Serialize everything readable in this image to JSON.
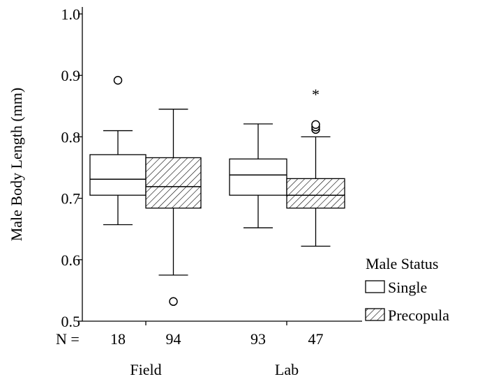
{
  "chart_data": {
    "type": "boxplot",
    "ylabel": "Male Body Length (mm)",
    "ylim": [
      0.5,
      1.0
    ],
    "yticks": [
      0.5,
      0.6,
      0.7,
      0.8,
      0.9,
      1.0
    ],
    "ytick_labels": [
      "0.5",
      "0.6",
      "0.7",
      "0.8",
      "0.9",
      "1.0"
    ],
    "groups": [
      "Field",
      "Lab"
    ],
    "n_prefix": "N =",
    "legend": {
      "title": "Male Status",
      "entries": [
        "Single",
        "Precopula"
      ],
      "placement": "right"
    },
    "boxes": [
      {
        "group": "Field",
        "series": "Single",
        "n": "18",
        "whisker_low": 0.657,
        "q1": 0.705,
        "median": 0.731,
        "q3": 0.771,
        "whisker_high": 0.81,
        "outliers": [
          0.892
        ],
        "extremes": []
      },
      {
        "group": "Field",
        "series": "Precopula",
        "n": "94",
        "whisker_low": 0.575,
        "q1": 0.684,
        "median": 0.719,
        "q3": 0.766,
        "whisker_high": 0.845,
        "outliers": [
          0.532
        ],
        "extremes": []
      },
      {
        "group": "Lab",
        "series": "Single",
        "n": "93",
        "whisker_low": 0.652,
        "q1": 0.705,
        "median": 0.738,
        "q3": 0.764,
        "whisker_high": 0.821,
        "outliers": [],
        "extremes": []
      },
      {
        "group": "Lab",
        "series": "Precopula",
        "n": "47",
        "whisker_low": 0.622,
        "q1": 0.684,
        "median": 0.705,
        "q3": 0.732,
        "whisker_high": 0.8,
        "outliers": [
          0.812,
          0.816,
          0.82
        ],
        "extremes": [
          0.873
        ]
      }
    ]
  }
}
